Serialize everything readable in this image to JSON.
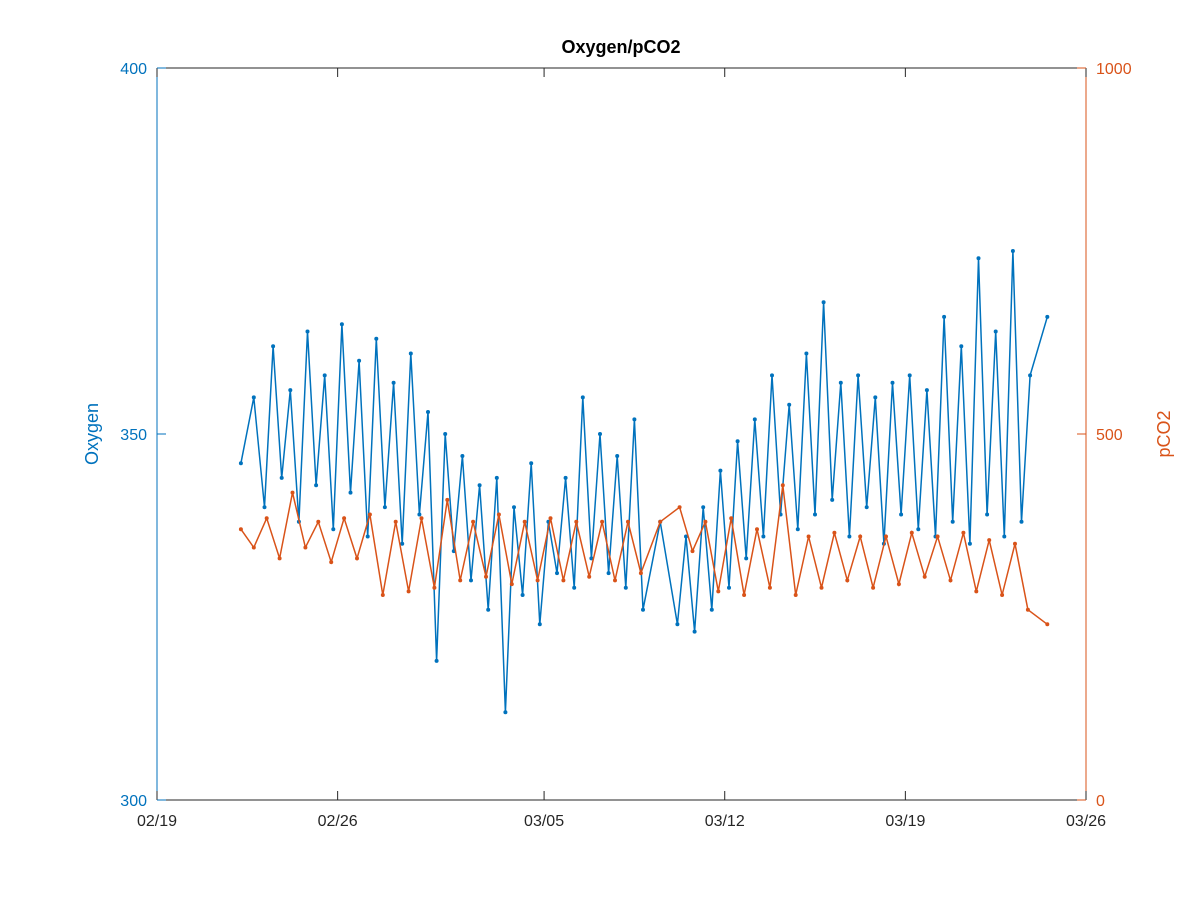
{
  "chart_data": {
    "type": "line",
    "title": "Oxygen/pCO2",
    "xlabel": "",
    "x_tick_labels": [
      "02/19",
      "02/26",
      "03/05",
      "03/12",
      "03/19",
      "03/26"
    ],
    "x_tick_dates": [
      "2024-02-19",
      "2024-02-26",
      "2024-03-05",
      "2024-03-12",
      "2024-03-19",
      "2024-03-26"
    ],
    "xlim": [
      "2024-02-19",
      "2024-03-26"
    ],
    "y_left": {
      "label": "Oxygen",
      "ylim": [
        300,
        400
      ],
      "ticks": [
        300,
        350,
        400
      ],
      "tick_labels": [
        "300",
        "350",
        "400"
      ],
      "color": "#0072bd"
    },
    "y_right": {
      "label": "pCO2",
      "ylim": [
        0,
        1000
      ],
      "ticks": [
        0,
        500,
        1000
      ],
      "tick_labels": [
        "0",
        "500",
        "1000"
      ],
      "color": "#d95319"
    },
    "grid": false,
    "series": [
      {
        "name": "Oxygen",
        "axis": "left",
        "color": "#0072bd",
        "marker": "dot",
        "x": [
          "2024-02-22",
          "2024-02-22",
          "2024-02-23",
          "2024-02-23",
          "2024-02-23",
          "2024-02-24",
          "2024-02-24",
          "2024-02-24",
          "2024-02-25",
          "2024-02-25",
          "2024-02-25",
          "2024-02-26",
          "2024-02-26",
          "2024-02-26",
          "2024-02-27",
          "2024-02-27",
          "2024-02-27",
          "2024-02-28",
          "2024-02-28",
          "2024-02-28",
          "2024-02-29",
          "2024-02-29",
          "2024-02-29",
          "2024-03-01",
          "2024-03-01",
          "2024-03-01",
          "2024-03-02",
          "2024-03-02",
          "2024-03-02",
          "2024-03-03",
          "2024-03-03",
          "2024-03-03",
          "2024-03-04",
          "2024-03-04",
          "2024-03-04",
          "2024-03-05",
          "2024-03-05",
          "2024-03-05",
          "2024-03-06",
          "2024-03-06",
          "2024-03-06",
          "2024-03-07",
          "2024-03-07",
          "2024-03-07",
          "2024-03-08",
          "2024-03-08",
          "2024-03-08",
          "2024-03-09",
          "2024-03-10",
          "2024-03-10",
          "2024-03-10",
          "2024-03-11",
          "2024-03-11",
          "2024-03-11",
          "2024-03-12",
          "2024-03-12",
          "2024-03-12",
          "2024-03-13",
          "2024-03-13",
          "2024-03-13",
          "2024-03-14",
          "2024-03-14",
          "2024-03-14",
          "2024-03-15",
          "2024-03-15",
          "2024-03-15",
          "2024-03-16",
          "2024-03-16",
          "2024-03-16",
          "2024-03-17",
          "2024-03-17",
          "2024-03-17",
          "2024-03-18",
          "2024-03-18",
          "2024-03-18",
          "2024-03-19",
          "2024-03-19",
          "2024-03-19",
          "2024-03-20",
          "2024-03-20",
          "2024-03-20",
          "2024-03-21",
          "2024-03-21",
          "2024-03-21",
          "2024-03-22",
          "2024-03-22",
          "2024-03-22",
          "2024-03-23",
          "2024-03-23",
          "2024-03-23",
          "2024-03-24"
        ],
        "values": [
          346,
          355,
          340,
          362,
          344,
          356,
          338,
          364,
          343,
          358,
          337,
          365,
          342,
          360,
          336,
          363,
          340,
          357,
          335,
          361,
          339,
          353,
          319,
          350,
          334,
          347,
          330,
          343,
          326,
          344,
          312,
          340,
          328,
          346,
          324,
          338,
          331,
          344,
          329,
          355,
          333,
          350,
          331,
          347,
          329,
          352,
          326,
          338,
          324,
          336,
          323,
          340,
          326,
          345,
          329,
          349,
          333,
          352,
          336,
          358,
          339,
          354,
          337,
          361,
          339,
          368,
          341,
          357,
          336,
          358,
          340,
          355,
          335,
          357,
          339,
          358,
          337,
          356,
          336,
          366,
          338,
          362,
          335,
          374,
          339,
          364,
          336,
          375,
          338,
          358,
          366
        ]
      },
      {
        "name": "pCO2",
        "axis": "right",
        "color": "#d95319",
        "marker": "dot",
        "x": [
          "2024-02-22",
          "2024-02-22",
          "2024-02-23",
          "2024-02-23",
          "2024-02-24",
          "2024-02-24",
          "2024-02-25",
          "2024-02-25",
          "2024-02-26",
          "2024-02-26",
          "2024-02-27",
          "2024-02-27",
          "2024-02-28",
          "2024-02-28",
          "2024-02-29",
          "2024-02-29",
          "2024-03-01",
          "2024-03-01",
          "2024-03-02",
          "2024-03-02",
          "2024-03-03",
          "2024-03-03",
          "2024-03-04",
          "2024-03-04",
          "2024-03-05",
          "2024-03-05",
          "2024-03-06",
          "2024-03-06",
          "2024-03-07",
          "2024-03-07",
          "2024-03-08",
          "2024-03-08",
          "2024-03-09",
          "2024-03-10",
          "2024-03-10",
          "2024-03-11",
          "2024-03-11",
          "2024-03-12",
          "2024-03-12",
          "2024-03-13",
          "2024-03-13",
          "2024-03-14",
          "2024-03-14",
          "2024-03-15",
          "2024-03-15",
          "2024-03-16",
          "2024-03-16",
          "2024-03-17",
          "2024-03-17",
          "2024-03-18",
          "2024-03-18",
          "2024-03-19",
          "2024-03-19",
          "2024-03-20",
          "2024-03-20",
          "2024-03-21",
          "2024-03-21",
          "2024-03-22",
          "2024-03-22",
          "2024-03-23",
          "2024-03-23",
          "2024-03-24"
        ],
        "values": [
          370,
          345,
          385,
          330,
          420,
          345,
          380,
          325,
          385,
          330,
          390,
          280,
          380,
          285,
          385,
          290,
          410,
          300,
          380,
          305,
          390,
          295,
          380,
          300,
          385,
          300,
          380,
          305,
          380,
          300,
          380,
          310,
          380,
          400,
          340,
          380,
          285,
          385,
          280,
          370,
          290,
          430,
          280,
          360,
          290,
          365,
          300,
          360,
          290,
          360,
          295,
          365,
          305,
          360,
          300,
          365,
          285,
          355,
          280,
          350,
          260,
          240
        ]
      }
    ]
  }
}
